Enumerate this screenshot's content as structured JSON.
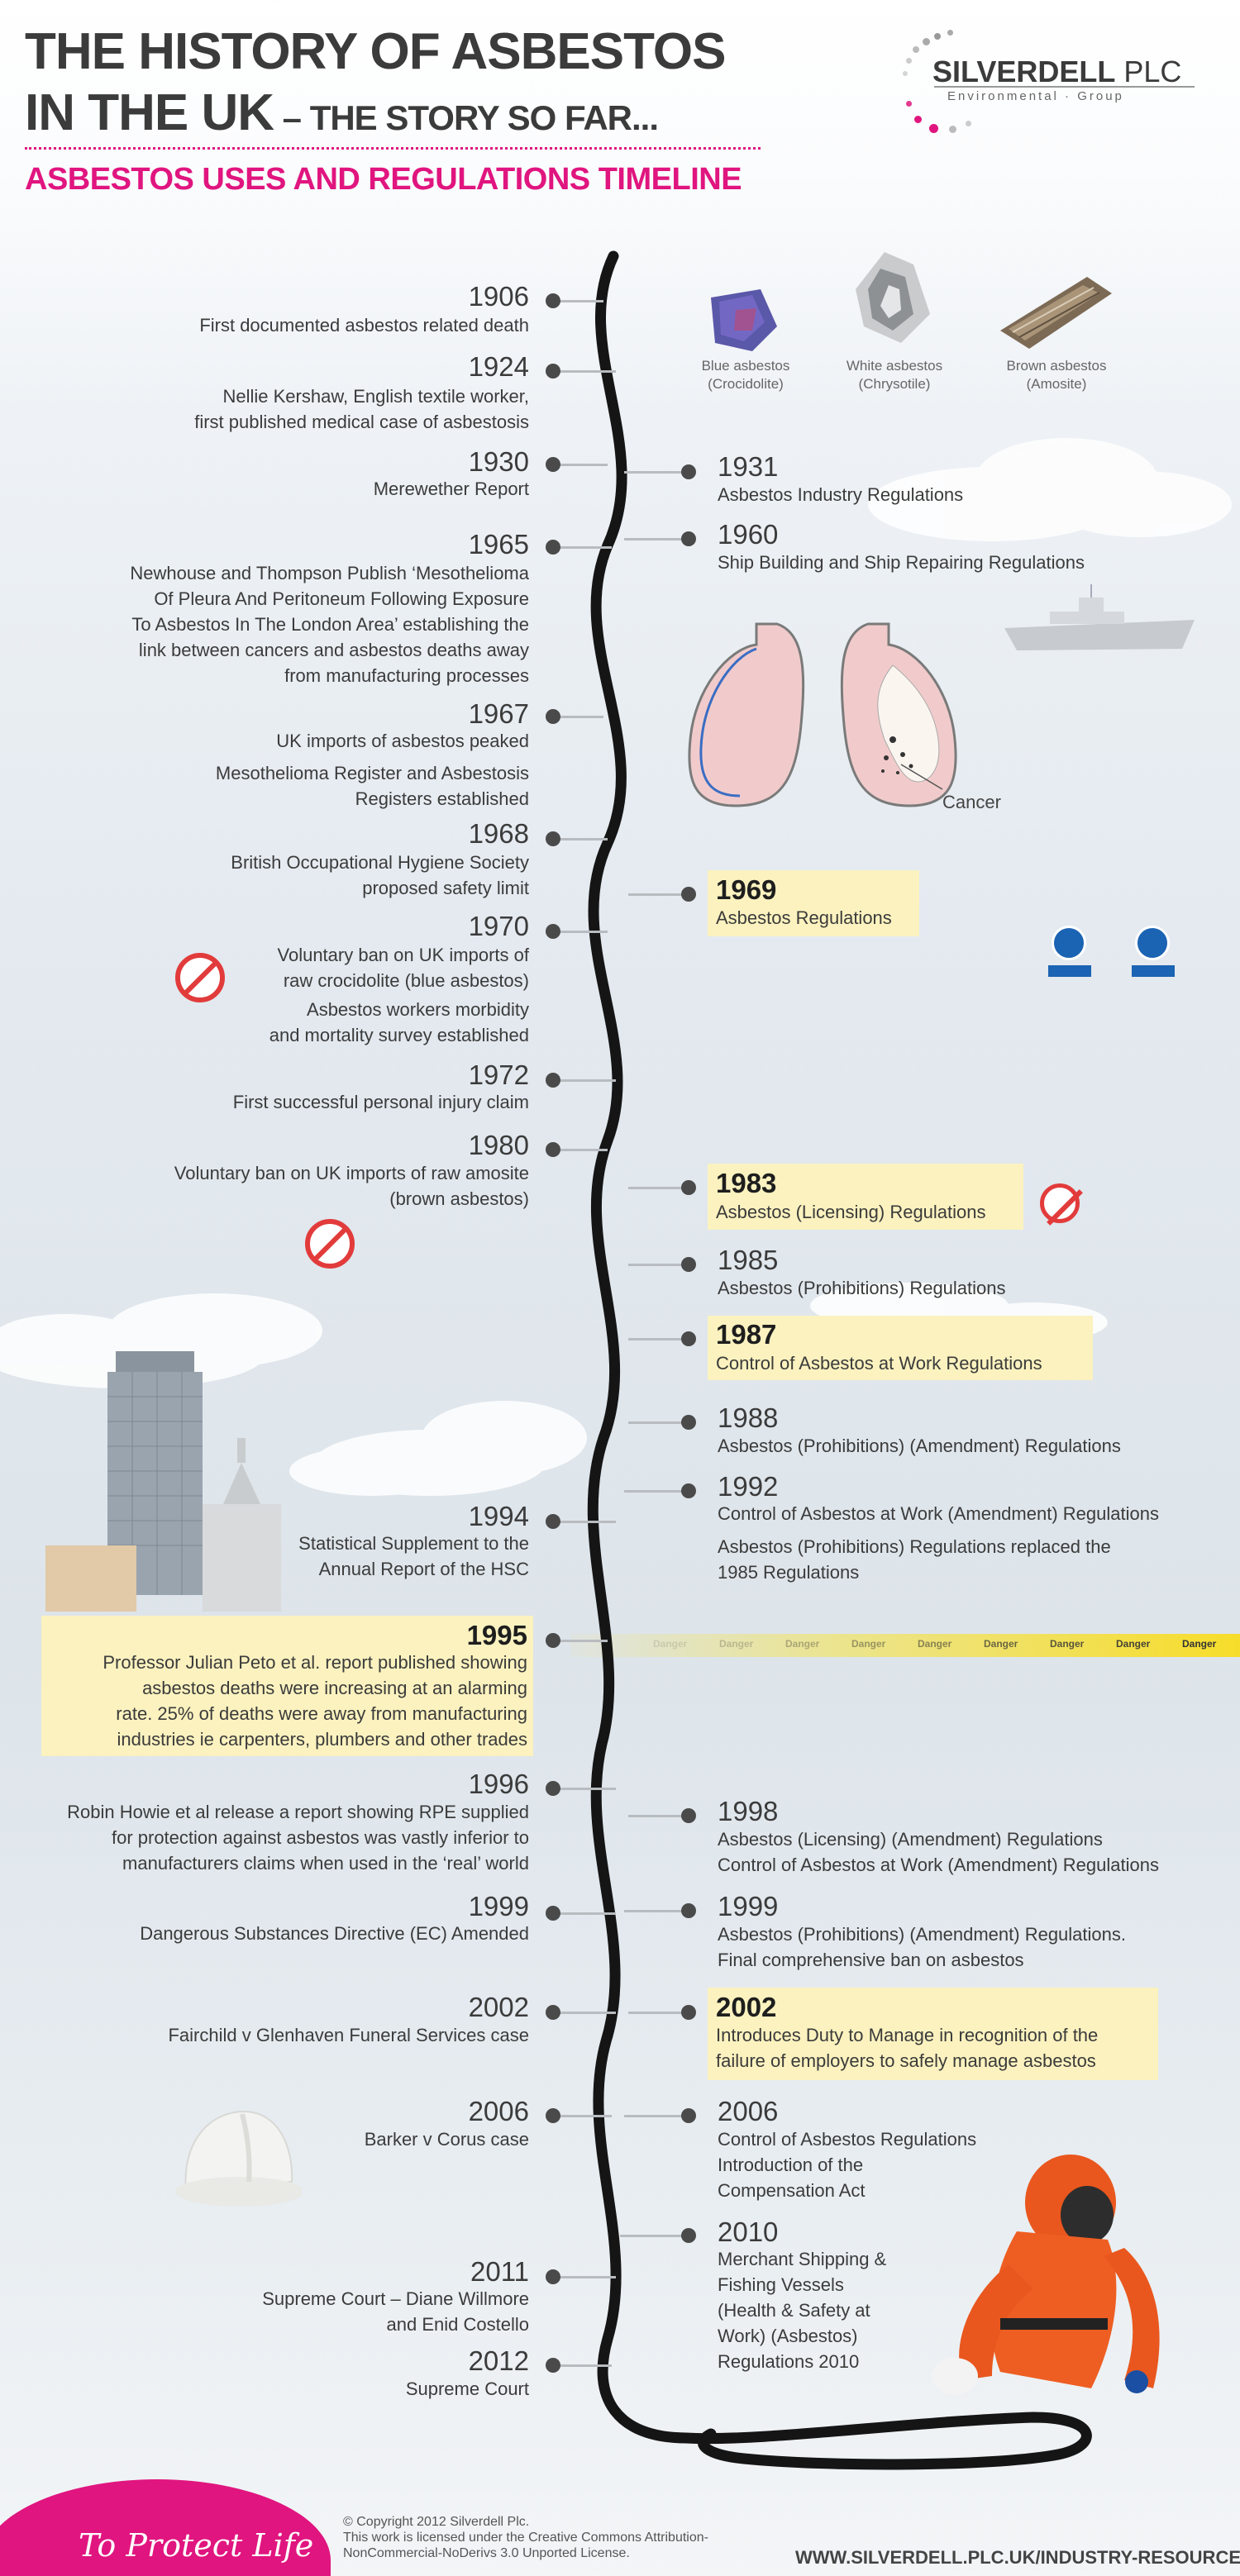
{
  "header": {
    "title_line1": "THE HISTORY OF ASBESTOS",
    "title_line2": "IN THE UK",
    "title_line2_suffix": " – THE STORY SO FAR...",
    "subtitle": "ASBESTOS USES AND REGULATIONS TIMELINE"
  },
  "logo": {
    "name": "SILVERDELL",
    "suffix": " PLC",
    "tagline": "Environmental · Group"
  },
  "samples": [
    {
      "name": "Blue asbestos",
      "type": "(Crocidolite)"
    },
    {
      "name": "White asbestos",
      "type": "(Chrysotile)"
    },
    {
      "name": "Brown asbestos",
      "type": "(Amosite)"
    }
  ],
  "cancer_label": "Cancer",
  "left_events": [
    {
      "year": "1906",
      "desc": [
        "First documented asbestos related death"
      ]
    },
    {
      "year": "1924",
      "desc": [
        "Nellie Kershaw, English textile worker,",
        "first published medical case of asbestosis"
      ]
    },
    {
      "year": "1930",
      "desc": [
        "Merewether Report"
      ]
    },
    {
      "year": "1965",
      "desc": [
        "Newhouse and Thompson Publish ‘Mesothelioma",
        "Of Pleura And Peritoneum Following Exposure",
        "To Asbestos In The London Area’ establishing the",
        "link between cancers and asbestos deaths away",
        "from manufacturing processes"
      ]
    },
    {
      "year": "1967",
      "desc": [
        "UK imports of asbestos peaked"
      ],
      "desc2": [
        "Mesothelioma Register and Asbestosis",
        "Registers established"
      ]
    },
    {
      "year": "1968",
      "desc": [
        "British Occupational Hygiene Society",
        "proposed safety limit"
      ]
    },
    {
      "year": "1970",
      "desc": [
        "Voluntary ban on UK imports of",
        "raw crocidolite (blue asbestos)"
      ],
      "desc2": [
        "Asbestos workers morbidity",
        "and mortality survey established"
      ]
    },
    {
      "year": "1972",
      "desc": [
        "First successful personal injury claim"
      ]
    },
    {
      "year": "1980",
      "desc": [
        "Voluntary ban on UK imports of raw amosite",
        "(brown asbestos)"
      ]
    },
    {
      "year": "1994",
      "desc": [
        "Statistical Supplement to the",
        "Annual Report of the HSC"
      ]
    },
    {
      "year": "1995",
      "desc": [
        "Professor Julian Peto et al. report published showing",
        "asbestos deaths were increasing at an alarming",
        "rate. 25% of deaths were away from manufacturing",
        "industries ie carpenters, plumbers and other trades"
      ]
    },
    {
      "year": "1996",
      "desc": [
        "Robin Howie et al release a report showing RPE supplied",
        "for protection against asbestos was vastly inferior to",
        "manufacturers claims when used in the ‘real’ world"
      ]
    },
    {
      "year": "1999",
      "desc": [
        "Dangerous Substances Directive (EC) Amended"
      ]
    },
    {
      "year": "2002",
      "desc": [
        "Fairchild v Glenhaven Funeral Services case"
      ]
    },
    {
      "year": "2006",
      "desc": [
        "Barker v Corus case"
      ]
    },
    {
      "year": "2011",
      "desc": [
        "Supreme Court – Diane Willmore",
        "and Enid Costello"
      ]
    },
    {
      "year": "2012",
      "desc": [
        "Supreme Court"
      ]
    }
  ],
  "right_events": [
    {
      "year": "1931",
      "desc": [
        "Asbestos Industry Regulations"
      ]
    },
    {
      "year": "1960",
      "desc": [
        "Ship Building and Ship Repairing Regulations"
      ]
    },
    {
      "year": "1969",
      "desc": [
        "Asbestos Regulations"
      ]
    },
    {
      "year": "1983",
      "desc": [
        "Asbestos (Licensing) Regulations"
      ]
    },
    {
      "year": "1985",
      "desc": [
        "Asbestos (Prohibitions) Regulations"
      ]
    },
    {
      "year": "1987",
      "desc": [
        "Control of Asbestos at Work Regulations"
      ]
    },
    {
      "year": "1988",
      "desc": [
        "Asbestos (Prohibitions) (Amendment) Regulations"
      ]
    },
    {
      "year": "1992",
      "desc": [
        "Control of Asbestos at Work (Amendment) Regulations"
      ],
      "desc2": [
        "Asbestos (Prohibitions) Regulations replaced the",
        "1985 Regulations"
      ]
    },
    {
      "year": "1998",
      "desc": [
        "Asbestos (Licensing) (Amendment) Regulations",
        "Control of Asbestos at Work (Amendment) Regulations"
      ]
    },
    {
      "year": "1999",
      "desc": [
        "Asbestos (Prohibitions) (Amendment) Regulations.",
        "Final comprehensive ban on asbestos"
      ]
    },
    {
      "year": "2002",
      "desc": [
        "Introduces Duty to Manage in recognition of the",
        "failure of employers to safely manage asbestos"
      ]
    },
    {
      "year": "2006",
      "desc": [
        "Control of Asbestos Regulations",
        "Introduction of the",
        "Compensation Act"
      ]
    },
    {
      "year": "2010",
      "desc": [
        "Merchant Shipping &",
        "Fishing Vessels",
        "(Health & Safety at",
        "Work) (Asbestos)",
        "Regulations 2010"
      ]
    }
  ],
  "danger_tape_label": "Danger",
  "footer": {
    "slogan": "To Protect Life",
    "copyright_lines": [
      "© Copyright 2012 Silverdell Plc.",
      "This work is licensed under the Creative Commons Attribution-",
      "NonCommercial-NoDerivs 3.0 Unported License."
    ],
    "url": "WWW.SILVERDELL.PLC.UK/INDUSTRY-RESOURCES"
  }
}
